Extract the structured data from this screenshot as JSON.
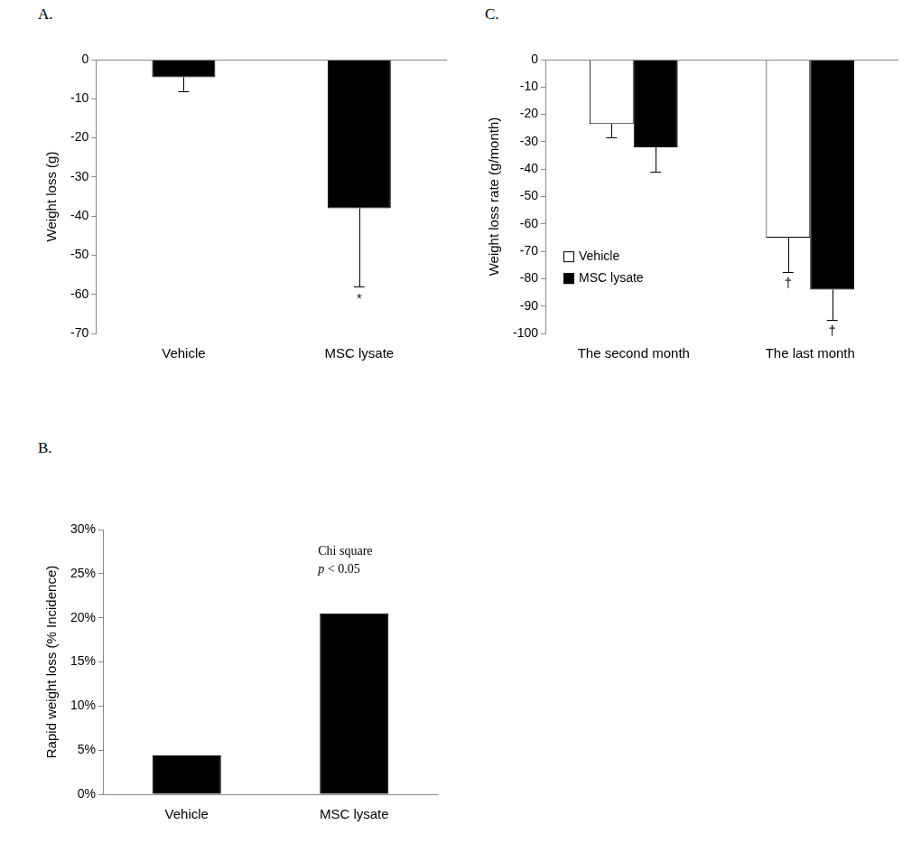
{
  "chart_data": [
    {
      "type": "bar",
      "title": "A.",
      "y_label": "Weight loss (g)",
      "categories": [
        "Vehicle",
        "MSC lysate"
      ],
      "values": [
        -4.5,
        -38
      ],
      "errors": [
        3.5,
        20
      ],
      "significance": [
        null,
        "*"
      ],
      "color": "#000000",
      "ylim": [
        -70,
        0
      ],
      "yticks": [
        -70,
        -60,
        -50,
        -40,
        -30,
        -20,
        -10,
        0
      ],
      "grid": false
    },
    {
      "type": "bar",
      "title": "B.",
      "y_label": "Rapid weight loss (% Incidence)",
      "categories": [
        "Vehicle",
        "MSC lysate"
      ],
      "values": [
        4.4,
        20.5
      ],
      "color": "#000000",
      "ylim": [
        0,
        30
      ],
      "yticks": [
        {
          "value": 0,
          "label": "0%"
        },
        {
          "value": 5,
          "label": "5%"
        },
        {
          "value": 10,
          "label": "10%"
        },
        {
          "value": 15,
          "label": "15%"
        },
        {
          "value": 20,
          "label": "20%"
        },
        {
          "value": 25,
          "label": "25%"
        },
        {
          "value": 30,
          "label": "30%"
        }
      ],
      "annotations": [
        "Chi square",
        "p < 0.05"
      ],
      "grid": false
    },
    {
      "type": "bar",
      "title": "C.",
      "y_label": "Weight loss rate (g/month)",
      "categories": [
        "The second month",
        "The last month"
      ],
      "series": [
        {
          "name": "Vehicle",
          "color": "#ffffff",
          "values": [
            -23.5,
            -65
          ],
          "errors": [
            5,
            12.5
          ],
          "significance": [
            null,
            "†"
          ]
        },
        {
          "name": "MSC lysate",
          "color": "#000000",
          "values": [
            -32,
            -84
          ],
          "errors": [
            9,
            11
          ],
          "significance": [
            null,
            "†"
          ]
        }
      ],
      "ylim": [
        -100,
        0
      ],
      "yticks": [
        -100,
        -90,
        -80,
        -70,
        -60,
        -50,
        -40,
        -30,
        -20,
        -10,
        0
      ],
      "grid": false,
      "legend": "left"
    }
  ]
}
